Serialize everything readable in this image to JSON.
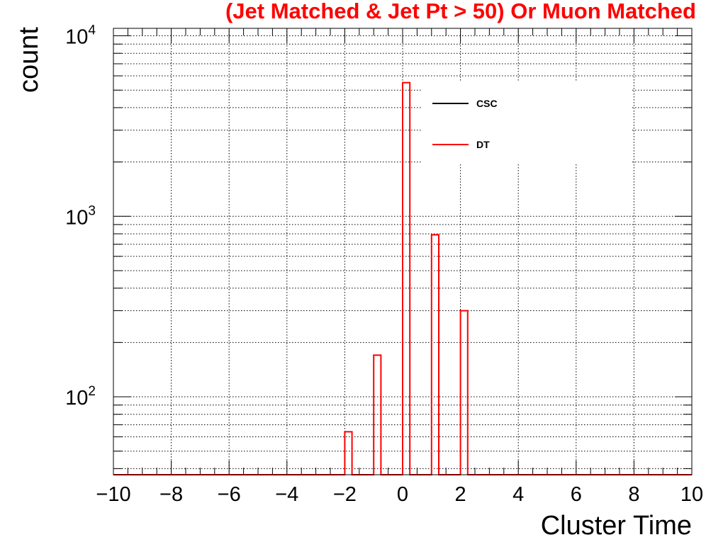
{
  "chart_data": {
    "type": "histogram",
    "title": "(Jet Matched & Jet Pt > 50) Or Muon Matched",
    "xlabel": "Cluster Time",
    "ylabel": "count",
    "xlim": [
      -10,
      10
    ],
    "ylim": [
      37,
      11000
    ],
    "yscale": "log",
    "grid": true,
    "bin_width": 0.25,
    "x_ticks": [
      -10,
      -8,
      -6,
      -4,
      -2,
      0,
      2,
      4,
      6,
      8,
      10
    ],
    "x_tick_labels": [
      "−10",
      "−8",
      "−6",
      "−4",
      "−2",
      "0",
      "2",
      "4",
      "6",
      "8",
      "10"
    ],
    "y_ticks": [
      {
        "value": 100,
        "base": "10",
        "exp": "2"
      },
      {
        "value": 1000,
        "base": "10",
        "exp": "3"
      },
      {
        "value": 10000,
        "base": "10",
        "exp": "4"
      }
    ],
    "legend": {
      "position": "top-right",
      "entries": [
        {
          "name": "CSC",
          "color": "#000000"
        },
        {
          "name": "DT",
          "color": "#ff0000"
        }
      ]
    },
    "series": [
      {
        "name": "CSC",
        "color": "#000000",
        "bins": []
      },
      {
        "name": "DT",
        "color": "#ff0000",
        "bins": [
          {
            "x0": -2.0,
            "x1": -1.75,
            "value": 64
          },
          {
            "x0": -1.0,
            "x1": -0.75,
            "value": 170
          },
          {
            "x0": 0.0,
            "x1": 0.25,
            "value": 5500
          },
          {
            "x0": 1.0,
            "x1": 1.25,
            "value": 790
          },
          {
            "x0": 2.0,
            "x1": 2.25,
            "value": 300
          }
        ]
      }
    ],
    "title_color": "#ff0000"
  }
}
